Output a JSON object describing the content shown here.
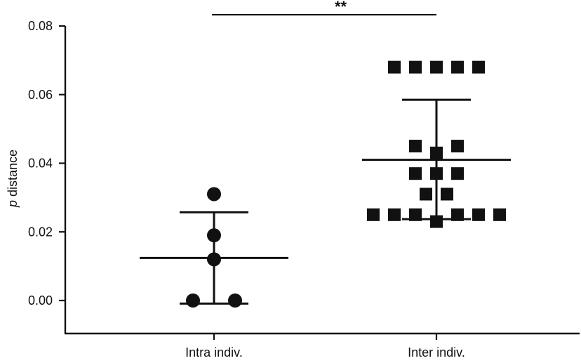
{
  "chart_data": {
    "type": "scatter",
    "title": "",
    "xlabel": "",
    "ylabel": "p distance",
    "ylabel_italic_prefix": "p",
    "ylabel_rest": " distance",
    "ylim": [
      -0.0095,
      0.08
    ],
    "y_ticks": [
      0.0,
      0.02,
      0.04,
      0.06,
      0.08
    ],
    "y_tick_labels": [
      "0.00",
      "0.02",
      "0.04",
      "0.06",
      "0.08"
    ],
    "categories": [
      "Intra indiv.",
      "Inter indiv."
    ],
    "grid": false,
    "significance": {
      "label": "**",
      "between": [
        "Intra indiv.",
        "Inter indiv."
      ]
    },
    "series": [
      {
        "category": "Intra indiv.",
        "marker": "circle",
        "color": "#111111",
        "points": [
          {
            "y": 0.031,
            "offset": 0
          },
          {
            "y": 0.019,
            "offset": 0
          },
          {
            "y": 0.012,
            "offset": 0
          },
          {
            "y": 0.0,
            "offset": -1
          },
          {
            "y": 0.0,
            "offset": 1
          }
        ],
        "mean": 0.0124,
        "error_upper": 0.0257,
        "error_lower": -0.0009
      },
      {
        "category": "Inter indiv.",
        "marker": "square",
        "color": "#111111",
        "points": [
          {
            "y": 0.068,
            "offset": -2
          },
          {
            "y": 0.068,
            "offset": -1
          },
          {
            "y": 0.068,
            "offset": 0
          },
          {
            "y": 0.068,
            "offset": 1
          },
          {
            "y": 0.068,
            "offset": 2
          },
          {
            "y": 0.045,
            "offset": -1
          },
          {
            "y": 0.045,
            "offset": 1
          },
          {
            "y": 0.043,
            "offset": 0
          },
          {
            "y": 0.037,
            "offset": -1
          },
          {
            "y": 0.037,
            "offset": 0
          },
          {
            "y": 0.037,
            "offset": 1
          },
          {
            "y": 0.031,
            "offset": -0.5
          },
          {
            "y": 0.031,
            "offset": 0.5
          },
          {
            "y": 0.025,
            "offset": -3
          },
          {
            "y": 0.025,
            "offset": -2
          },
          {
            "y": 0.025,
            "offset": -1
          },
          {
            "y": 0.025,
            "offset": 1
          },
          {
            "y": 0.025,
            "offset": 2
          },
          {
            "y": 0.025,
            "offset": 3
          },
          {
            "y": 0.023,
            "offset": 0
          }
        ],
        "mean": 0.041,
        "error_upper": 0.0585,
        "error_lower": 0.0237
      }
    ]
  }
}
